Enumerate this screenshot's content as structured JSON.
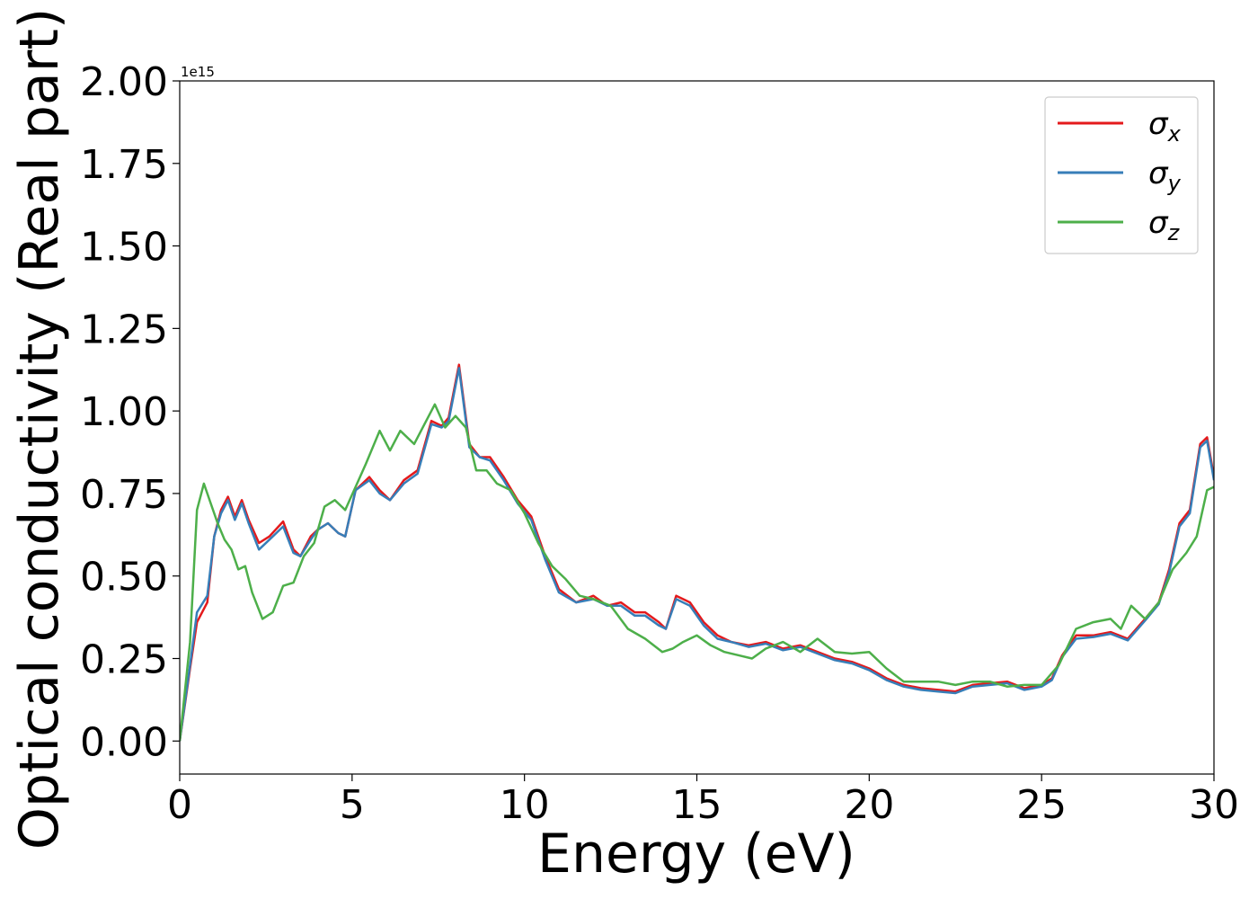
{
  "chart_data": {
    "type": "line",
    "xlabel": "Energy (eV)",
    "ylabel": "Optical conductivity (Real part)",
    "y_offset_label": "1e15",
    "xlim": [
      0,
      30
    ],
    "ylim": [
      -0.1,
      2.0
    ],
    "x_ticks": [
      0,
      5,
      10,
      15,
      20,
      25,
      30
    ],
    "x_tick_labels": [
      "0",
      "5",
      "10",
      "15",
      "20",
      "25",
      "30"
    ],
    "y_ticks": [
      0,
      0.25,
      0.5,
      0.75,
      1.0,
      1.25,
      1.5,
      1.75,
      2.0
    ],
    "y_tick_labels": [
      "0.00",
      "0.25",
      "0.50",
      "0.75",
      "1.00",
      "1.25",
      "1.50",
      "1.75",
      "2.00"
    ],
    "grid": false,
    "legend_position": "top-right",
    "series": [
      {
        "name": "σx",
        "legend_symbol": "σ",
        "legend_sub": "x",
        "color": "#e41a1c",
        "x": [
          0,
          0.3,
          0.5,
          0.8,
          1.0,
          1.2,
          1.4,
          1.6,
          1.8,
          2.0,
          2.3,
          2.6,
          3.0,
          3.3,
          3.5,
          3.8,
          4.0,
          4.3,
          4.6,
          4.8,
          5.1,
          5.5,
          5.8,
          6.1,
          6.5,
          6.9,
          7.3,
          7.6,
          7.8,
          8.1,
          8.4,
          8.7,
          9.0,
          9.4,
          9.8,
          10.2,
          10.6,
          11.0,
          11.5,
          12.0,
          12.4,
          12.8,
          13.2,
          13.5,
          13.9,
          14.1,
          14.4,
          14.8,
          15.2,
          15.6,
          16.0,
          16.5,
          17.0,
          17.5,
          18.0,
          18.5,
          19.0,
          19.5,
          20.0,
          20.5,
          21.0,
          21.5,
          22.0,
          22.5,
          23.0,
          23.5,
          24.0,
          24.5,
          25.0,
          25.3,
          25.6,
          26.0,
          26.5,
          27.0,
          27.5,
          28.0,
          28.4,
          28.7,
          29.0,
          29.3,
          29.6,
          29.8,
          30.0
        ],
        "y": [
          0.0,
          0.22,
          0.36,
          0.42,
          0.62,
          0.7,
          0.74,
          0.68,
          0.73,
          0.67,
          0.6,
          0.62,
          0.665,
          0.58,
          0.56,
          0.62,
          0.64,
          0.66,
          0.63,
          0.62,
          0.76,
          0.8,
          0.76,
          0.73,
          0.79,
          0.82,
          0.97,
          0.955,
          0.98,
          1.14,
          0.9,
          0.86,
          0.86,
          0.8,
          0.73,
          0.68,
          0.56,
          0.46,
          0.42,
          0.44,
          0.41,
          0.42,
          0.39,
          0.39,
          0.36,
          0.34,
          0.44,
          0.42,
          0.36,
          0.32,
          0.3,
          0.29,
          0.3,
          0.28,
          0.29,
          0.27,
          0.25,
          0.24,
          0.22,
          0.19,
          0.17,
          0.16,
          0.155,
          0.15,
          0.17,
          0.175,
          0.18,
          0.16,
          0.17,
          0.19,
          0.26,
          0.32,
          0.32,
          0.33,
          0.31,
          0.37,
          0.42,
          0.52,
          0.66,
          0.7,
          0.9,
          0.92,
          0.8
        ]
      },
      {
        "name": "σy",
        "legend_symbol": "σ",
        "legend_sub": "y",
        "color": "#377eb8",
        "x": [
          0,
          0.3,
          0.5,
          0.8,
          1.0,
          1.2,
          1.4,
          1.6,
          1.8,
          2.0,
          2.3,
          2.6,
          3.0,
          3.3,
          3.5,
          3.8,
          4.0,
          4.3,
          4.6,
          4.8,
          5.1,
          5.5,
          5.8,
          6.1,
          6.5,
          6.9,
          7.3,
          7.6,
          7.8,
          8.1,
          8.4,
          8.7,
          9.0,
          9.4,
          9.8,
          10.2,
          10.6,
          11.0,
          11.5,
          12.0,
          12.4,
          12.8,
          13.2,
          13.5,
          13.9,
          14.1,
          14.4,
          14.8,
          15.2,
          15.6,
          16.0,
          16.5,
          17.0,
          17.5,
          18.0,
          18.5,
          19.0,
          19.5,
          20.0,
          20.5,
          21.0,
          21.5,
          22.0,
          22.5,
          23.0,
          23.5,
          24.0,
          24.5,
          25.0,
          25.3,
          25.6,
          26.0,
          26.5,
          27.0,
          27.5,
          28.0,
          28.4,
          28.7,
          29.0,
          29.3,
          29.6,
          29.8,
          30.0
        ],
        "y": [
          0.0,
          0.23,
          0.39,
          0.44,
          0.62,
          0.69,
          0.73,
          0.67,
          0.72,
          0.66,
          0.58,
          0.61,
          0.65,
          0.57,
          0.56,
          0.61,
          0.64,
          0.66,
          0.63,
          0.62,
          0.76,
          0.79,
          0.75,
          0.73,
          0.78,
          0.81,
          0.96,
          0.95,
          0.97,
          1.13,
          0.89,
          0.86,
          0.85,
          0.79,
          0.72,
          0.67,
          0.55,
          0.45,
          0.42,
          0.43,
          0.41,
          0.41,
          0.38,
          0.38,
          0.35,
          0.34,
          0.43,
          0.41,
          0.35,
          0.31,
          0.3,
          0.285,
          0.295,
          0.275,
          0.285,
          0.265,
          0.245,
          0.235,
          0.215,
          0.185,
          0.165,
          0.155,
          0.15,
          0.145,
          0.165,
          0.17,
          0.175,
          0.155,
          0.165,
          0.185,
          0.255,
          0.31,
          0.315,
          0.325,
          0.305,
          0.365,
          0.415,
          0.51,
          0.65,
          0.69,
          0.89,
          0.91,
          0.79
        ]
      },
      {
        "name": "σz",
        "legend_symbol": "σ",
        "legend_sub": "z",
        "color": "#4daf4a",
        "x": [
          0,
          0.3,
          0.5,
          0.7,
          0.9,
          1.1,
          1.3,
          1.5,
          1.7,
          1.9,
          2.1,
          2.4,
          2.7,
          3.0,
          3.3,
          3.6,
          3.9,
          4.2,
          4.5,
          4.8,
          5.1,
          5.4,
          5.8,
          6.1,
          6.4,
          6.8,
          7.1,
          7.4,
          7.7,
          8.0,
          8.3,
          8.6,
          8.9,
          9.2,
          9.6,
          10.0,
          10.4,
          10.8,
          11.2,
          11.6,
          12.0,
          12.5,
          13.0,
          13.5,
          14.0,
          14.3,
          14.6,
          15.0,
          15.4,
          15.8,
          16.2,
          16.6,
          17.0,
          17.5,
          18.0,
          18.5,
          19.0,
          19.5,
          20.0,
          20.5,
          21.0,
          21.5,
          22.0,
          22.5,
          23.0,
          23.5,
          24.0,
          24.5,
          25.0,
          25.5,
          26.0,
          26.5,
          27.0,
          27.3,
          27.6,
          28.0,
          28.4,
          28.8,
          29.2,
          29.5,
          29.8,
          30.0
        ],
        "y": [
          0.0,
          0.3,
          0.7,
          0.78,
          0.72,
          0.66,
          0.61,
          0.58,
          0.52,
          0.53,
          0.45,
          0.37,
          0.39,
          0.47,
          0.48,
          0.56,
          0.6,
          0.71,
          0.73,
          0.7,
          0.77,
          0.84,
          0.94,
          0.88,
          0.94,
          0.9,
          0.96,
          1.02,
          0.95,
          0.985,
          0.95,
          0.82,
          0.82,
          0.78,
          0.76,
          0.69,
          0.6,
          0.53,
          0.49,
          0.44,
          0.43,
          0.41,
          0.34,
          0.31,
          0.27,
          0.28,
          0.3,
          0.32,
          0.29,
          0.27,
          0.26,
          0.25,
          0.28,
          0.3,
          0.27,
          0.31,
          0.27,
          0.265,
          0.27,
          0.22,
          0.18,
          0.18,
          0.18,
          0.17,
          0.18,
          0.18,
          0.165,
          0.17,
          0.17,
          0.23,
          0.34,
          0.36,
          0.37,
          0.34,
          0.41,
          0.37,
          0.42,
          0.52,
          0.57,
          0.62,
          0.76,
          0.77
        ]
      }
    ]
  }
}
